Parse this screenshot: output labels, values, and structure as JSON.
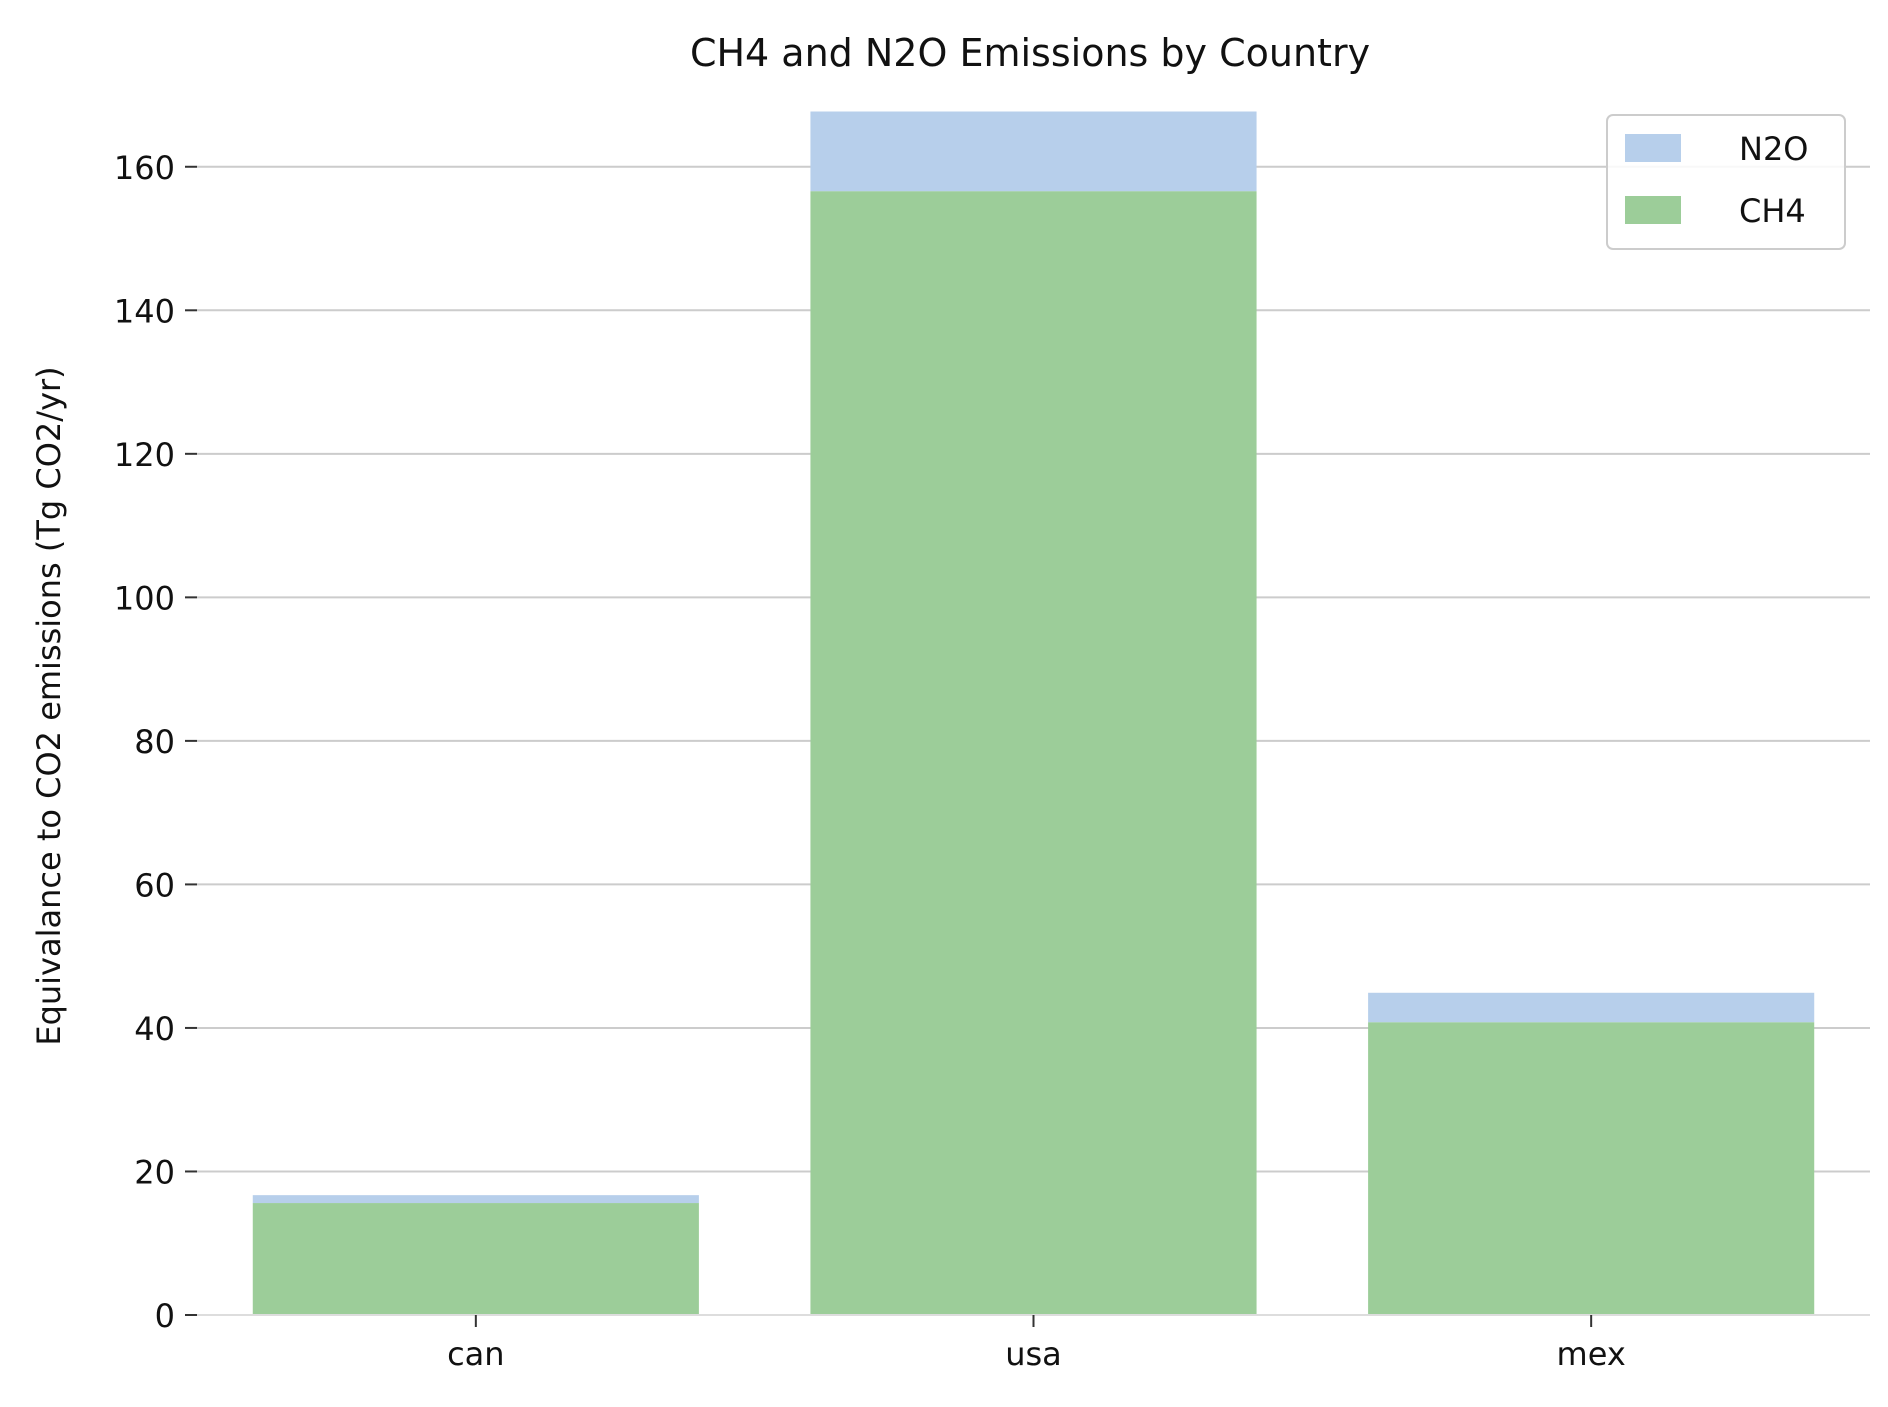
{
  "chart_data": {
    "type": "bar",
    "stacked": true,
    "title": "CH4 and N2O Emissions by Country",
    "ylabel": "Equivalance to CO2 emissions (Tg CO2/yr)",
    "xlabel": "",
    "categories": [
      "can",
      "usa",
      "mex"
    ],
    "series": [
      {
        "name": "CH4",
        "color": "#9ccd99",
        "values": [
          15.6,
          156.6,
          40.8
        ]
      },
      {
        "name": "N2O",
        "color": "#b7cfeb",
        "values": [
          1.1,
          11.1,
          4.1
        ]
      }
    ],
    "ylim": [
      0,
      170
    ],
    "yticks": [
      0,
      20,
      40,
      60,
      80,
      100,
      120,
      140,
      160
    ],
    "grid": "horizontal",
    "legend": {
      "placement": "top-right",
      "order": [
        "N2O",
        "CH4"
      ]
    }
  }
}
